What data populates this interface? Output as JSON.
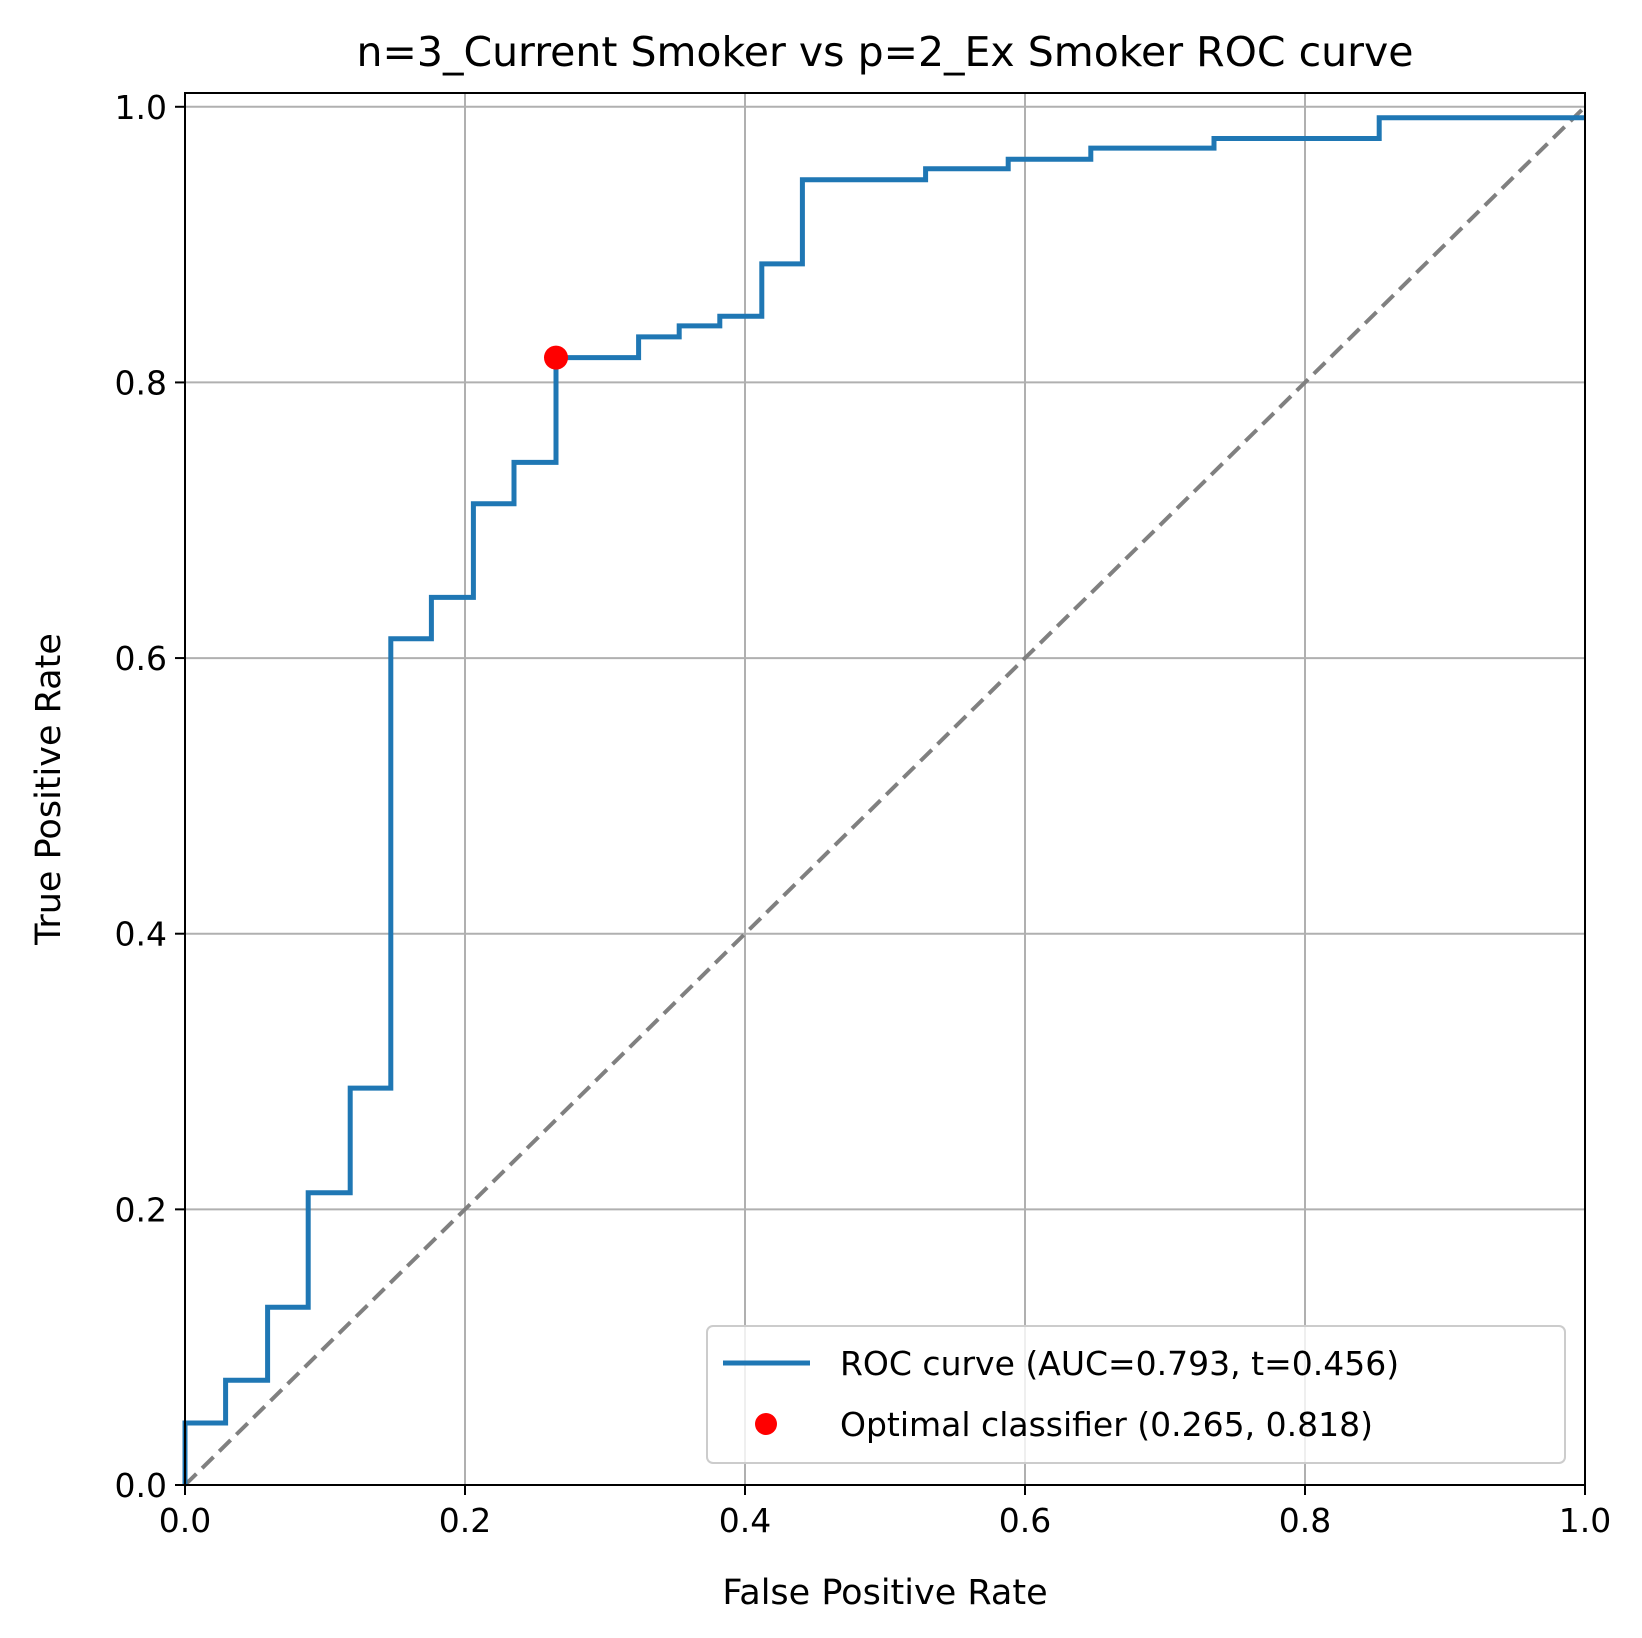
{
  "chart_data": {
    "type": "line",
    "title": "n=3_Current Smoker vs p=2_Ex Smoker ROC curve",
    "xlabel": "False Positive Rate",
    "ylabel": "True Positive Rate",
    "xlim": [
      0.0,
      1.0
    ],
    "ylim": [
      0.0,
      1.01
    ],
    "grid": true,
    "legend_position": "lower-right",
    "x_ticks": [
      "0.0",
      "0.2",
      "0.4",
      "0.6",
      "0.8",
      "1.0"
    ],
    "y_ticks": [
      "0.0",
      "0.2",
      "0.4",
      "0.6",
      "0.8",
      "1.0"
    ],
    "series": [
      {
        "name": "ROC curve (AUC=0.793, t=0.456)",
        "color": "#1f77b4",
        "style": "step",
        "x": [
          0.0,
          0.0,
          0.029,
          0.029,
          0.059,
          0.059,
          0.088,
          0.088,
          0.118,
          0.118,
          0.147,
          0.147,
          0.176,
          0.176,
          0.206,
          0.206,
          0.235,
          0.235,
          0.265,
          0.265,
          0.324,
          0.324,
          0.353,
          0.353,
          0.382,
          0.382,
          0.412,
          0.412,
          0.441,
          0.441,
          0.529,
          0.529,
          0.588,
          0.588,
          0.647,
          0.647,
          0.735,
          0.735,
          0.853,
          0.853,
          1.0
        ],
        "y": [
          0.0,
          0.045,
          0.045,
          0.076,
          0.076,
          0.129,
          0.129,
          0.212,
          0.212,
          0.288,
          0.288,
          0.614,
          0.614,
          0.644,
          0.644,
          0.712,
          0.712,
          0.742,
          0.742,
          0.818,
          0.818,
          0.833,
          0.833,
          0.841,
          0.841,
          0.848,
          0.848,
          0.886,
          0.886,
          0.947,
          0.947,
          0.955,
          0.955,
          0.962,
          0.962,
          0.97,
          0.97,
          0.977,
          0.977,
          0.992,
          0.992
        ]
      },
      {
        "name": "Optimal classifier (0.265, 0.818)",
        "color": "#ff0000",
        "style": "marker",
        "x": [
          0.265
        ],
        "y": [
          0.818
        ]
      },
      {
        "name": "",
        "color": "#808080",
        "style": "dashed",
        "x": [
          0.0,
          1.0
        ],
        "y": [
          0.0,
          1.0
        ]
      }
    ]
  }
}
